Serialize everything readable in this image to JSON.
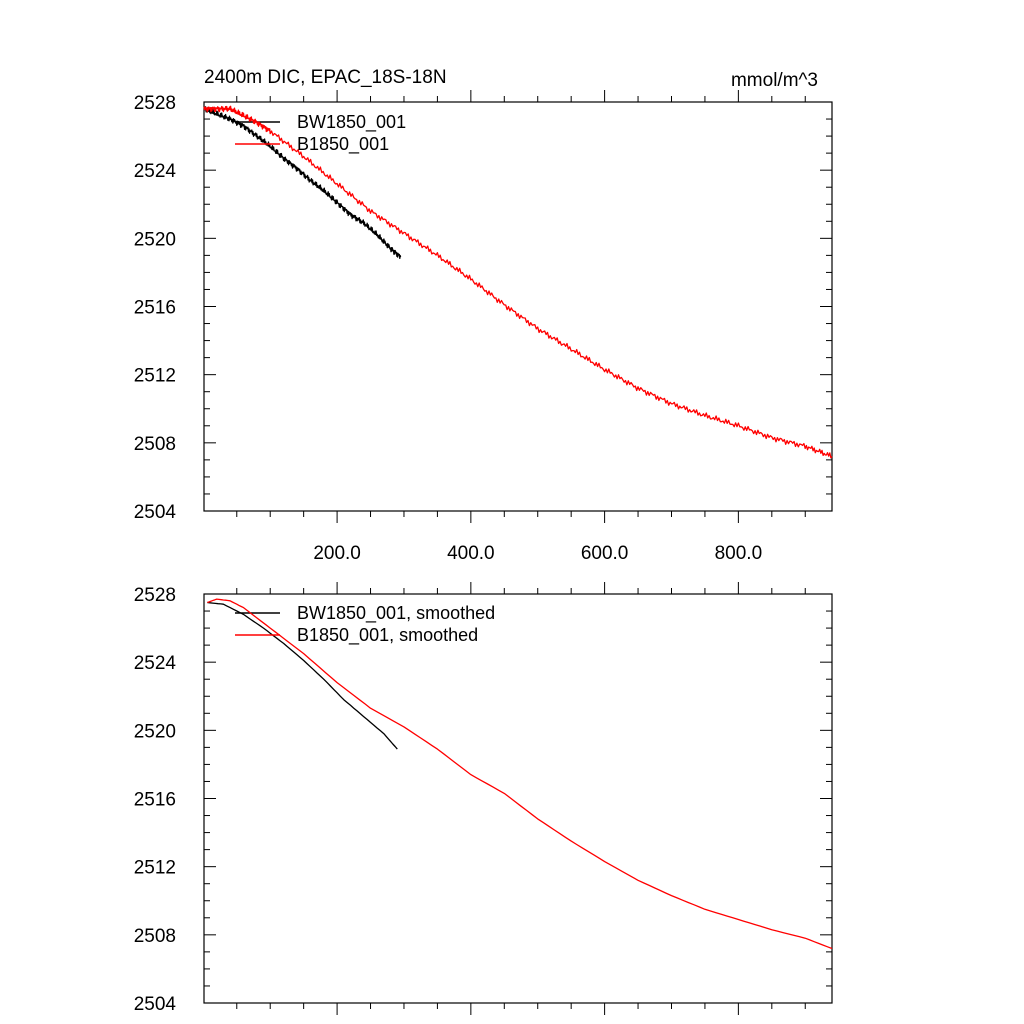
{
  "title": "2400m DIC, EPAC_18S-18N",
  "units": "mmol/m^3",
  "chart_data": [
    {
      "type": "line",
      "title": "2400m DIC, EPAC_18S-18N",
      "units": "mmol/m^3",
      "xlim": [
        1,
        940
      ],
      "ylim": [
        2504,
        2528
      ],
      "ymajor_ticks": [
        2504,
        2508,
        2512,
        2516,
        2520,
        2524,
        2528
      ],
      "yminor_step": 1,
      "xmajor_ticks": [
        200,
        400,
        600,
        800
      ],
      "xminor_step": 50,
      "xtick_labels": [
        "200.0",
        "400.0",
        "600.0",
        "800.0"
      ],
      "legend_placement": "top-left",
      "series": [
        {
          "name": "BW1850_001",
          "color": "#000000",
          "smoothed": false,
          "x": [
            1,
            20,
            40,
            60,
            80,
            100,
            120,
            140,
            160,
            180,
            200,
            220,
            240,
            260,
            280,
            295
          ],
          "y": [
            2527.6,
            2527.3,
            2527.0,
            2526.6,
            2526.0,
            2525.4,
            2524.7,
            2524.1,
            2523.4,
            2522.8,
            2522.1,
            2521.4,
            2520.9,
            2520.2,
            2519.4,
            2518.9
          ]
        },
        {
          "name": "B1850_001",
          "color": "#ff0000",
          "smoothed": false,
          "x": [
            1,
            20,
            40,
            60,
            80,
            100,
            150,
            200,
            250,
            300,
            350,
            400,
            450,
            500,
            550,
            600,
            650,
            700,
            750,
            800,
            850,
            900,
            940
          ],
          "y": [
            2527.6,
            2527.6,
            2527.6,
            2527.2,
            2526.8,
            2526.3,
            2524.8,
            2523.2,
            2521.6,
            2520.3,
            2519.0,
            2517.6,
            2516.1,
            2514.7,
            2513.5,
            2512.3,
            2511.2,
            2510.3,
            2509.6,
            2509.0,
            2508.3,
            2507.8,
            2507.2
          ]
        }
      ]
    },
    {
      "type": "line",
      "xlim": [
        1,
        940
      ],
      "ylim": [
        2504,
        2528
      ],
      "ymajor_ticks": [
        2504,
        2508,
        2512,
        2516,
        2520,
        2524,
        2528
      ],
      "yminor_step": 1,
      "xmajor_ticks": [
        200,
        400,
        600,
        800
      ],
      "xminor_step": 50,
      "legend_placement": "top-left",
      "series": [
        {
          "name": "BW1850_001, smoothed",
          "color": "#000000",
          "smoothed": true,
          "x": [
            6,
            30,
            60,
            90,
            120,
            150,
            180,
            210,
            240,
            270,
            290
          ],
          "y": [
            2527.5,
            2527.4,
            2526.8,
            2526.0,
            2525.1,
            2524.1,
            2523.0,
            2521.8,
            2520.8,
            2519.8,
            2518.9
          ]
        },
        {
          "name": "B1850_001, smoothed",
          "color": "#ff0000",
          "smoothed": true,
          "x": [
            6,
            20,
            40,
            60,
            100,
            150,
            200,
            250,
            300,
            350,
            400,
            450,
            500,
            550,
            600,
            650,
            700,
            750,
            800,
            850,
            900,
            940
          ],
          "y": [
            2527.5,
            2527.7,
            2527.6,
            2527.2,
            2526.0,
            2524.5,
            2522.8,
            2521.3,
            2520.2,
            2518.9,
            2517.4,
            2516.3,
            2514.8,
            2513.5,
            2512.3,
            2511.2,
            2510.3,
            2509.5,
            2508.9,
            2508.3,
            2507.8,
            2507.2
          ]
        }
      ]
    }
  ]
}
